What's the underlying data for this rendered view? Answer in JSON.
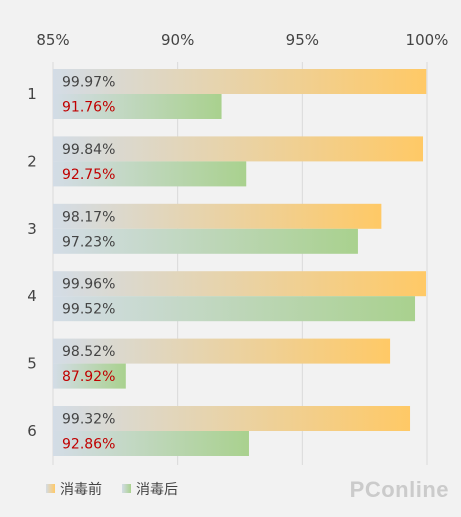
{
  "chart_data": {
    "type": "bar",
    "orientation": "horizontal",
    "categories": [
      "1",
      "2",
      "3",
      "4",
      "5",
      "6"
    ],
    "series": [
      {
        "name": "消毒前",
        "values": [
          99.97,
          99.84,
          98.17,
          99.96,
          98.52,
          99.32
        ],
        "labels": [
          "99.97%",
          "99.84%",
          "98.17%",
          "99.96%",
          "98.52%",
          "99.32%"
        ],
        "color": "#ffc966",
        "label_color": "#444444"
      },
      {
        "name": "消毒后",
        "values": [
          91.76,
          92.75,
          97.23,
          99.52,
          87.92,
          92.86
        ],
        "labels": [
          "91.76%",
          "92.75%",
          "97.23%",
          "99.52%",
          "87.92%",
          "92.86%"
        ],
        "color": "#a9d18e",
        "label_colors": [
          "#c00000",
          "#c00000",
          "#444444",
          "#444444",
          "#c00000",
          "#c00000"
        ]
      }
    ],
    "xlim": [
      85,
      100
    ],
    "xticks": [
      85,
      90,
      95,
      100
    ],
    "xtick_labels": [
      "85%",
      "90%",
      "95%",
      "100%"
    ],
    "axis_position": "top",
    "grid": true,
    "legend": "bottom-left",
    "bar_base_color": "#d3dce6"
  },
  "watermark": "PConline"
}
